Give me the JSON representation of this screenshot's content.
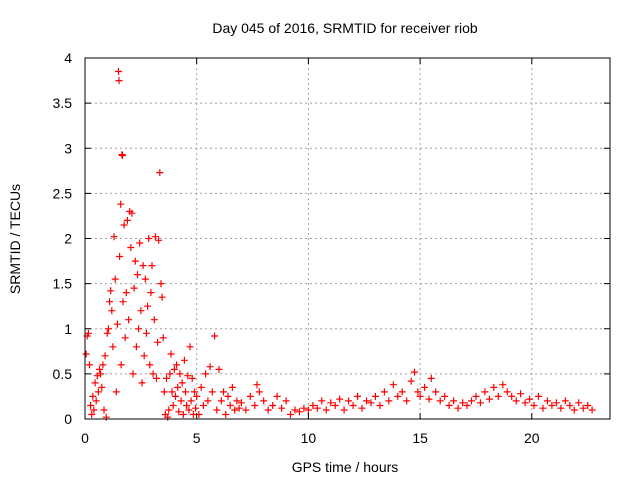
{
  "chart_data": {
    "type": "scatter",
    "title": "Day 045 of 2016, SRMTID for receiver riob",
    "xlabel": "GPS time / hours",
    "ylabel": "SRMTID / TECUs",
    "xlim": [
      0,
      23.5
    ],
    "ylim": [
      0,
      4
    ],
    "xticks": [
      0,
      5,
      10,
      15,
      20
    ],
    "yticks": [
      0,
      0.5,
      1,
      1.5,
      2,
      2.5,
      3,
      3.5,
      4
    ],
    "xtick_labels": [
      "0",
      "5",
      "10",
      "15",
      "20"
    ],
    "ytick_labels": [
      "0",
      "0.5",
      "1",
      "1.5",
      "2",
      "2.5",
      "3",
      "3.5",
      "4"
    ],
    "grid": true,
    "marker": "+",
    "color": "#ff0000",
    "series": [
      {
        "name": "SRMTID",
        "points": [
          [
            0.05,
            0.72
          ],
          [
            0.1,
            0.92
          ],
          [
            0.15,
            0.95
          ],
          [
            0.2,
            0.6
          ],
          [
            0.25,
            0.15
          ],
          [
            0.3,
            0.05
          ],
          [
            0.35,
            0.25
          ],
          [
            0.4,
            0.1
          ],
          [
            0.45,
            0.4
          ],
          [
            0.5,
            0.2
          ],
          [
            0.55,
            0.48
          ],
          [
            0.6,
            0.3
          ],
          [
            0.65,
            0.55
          ],
          [
            0.7,
            0.5
          ],
          [
            0.75,
            0.35
          ],
          [
            0.8,
            0.6
          ],
          [
            0.85,
            0.1
          ],
          [
            0.9,
            0.7
          ],
          [
            0.95,
            0.02
          ],
          [
            1.0,
            0.95
          ],
          [
            1.05,
            1.0
          ],
          [
            1.1,
            1.3
          ],
          [
            1.15,
            1.42
          ],
          [
            1.2,
            1.2
          ],
          [
            1.25,
            0.8
          ],
          [
            1.3,
            2.02
          ],
          [
            1.35,
            1.55
          ],
          [
            1.4,
            0.3
          ],
          [
            1.45,
            1.05
          ],
          [
            1.5,
            3.85
          ],
          [
            1.52,
            3.75
          ],
          [
            1.55,
            1.8
          ],
          [
            1.6,
            2.38
          ],
          [
            1.62,
            0.6
          ],
          [
            1.65,
            2.93
          ],
          [
            1.68,
            2.92
          ],
          [
            1.7,
            1.3
          ],
          [
            1.75,
            2.15
          ],
          [
            1.8,
            0.9
          ],
          [
            1.85,
            1.4
          ],
          [
            1.9,
            2.2
          ],
          [
            1.95,
            1.1
          ],
          [
            2.0,
            2.3
          ],
          [
            2.05,
            1.9
          ],
          [
            2.1,
            2.28
          ],
          [
            2.15,
            0.5
          ],
          [
            2.2,
            1.45
          ],
          [
            2.25,
            1.75
          ],
          [
            2.3,
            0.8
          ],
          [
            2.35,
            1.6
          ],
          [
            2.4,
            1.0
          ],
          [
            2.45,
            1.95
          ],
          [
            2.5,
            1.2
          ],
          [
            2.55,
            0.4
          ],
          [
            2.6,
            1.7
          ],
          [
            2.65,
            0.7
          ],
          [
            2.7,
            1.55
          ],
          [
            2.75,
            0.95
          ],
          [
            2.8,
            1.25
          ],
          [
            2.85,
            2.0
          ],
          [
            2.9,
            0.6
          ],
          [
            2.95,
            1.4
          ],
          [
            3.0,
            1.7
          ],
          [
            3.05,
            0.5
          ],
          [
            3.1,
            1.1
          ],
          [
            3.15,
            2.02
          ],
          [
            3.2,
            0.45
          ],
          [
            3.25,
            0.85
          ],
          [
            3.3,
            1.98
          ],
          [
            3.35,
            2.73
          ],
          [
            3.4,
            1.5
          ],
          [
            3.45,
            1.35
          ],
          [
            3.5,
            0.9
          ],
          [
            3.55,
            0.3
          ],
          [
            3.6,
            0.05
          ],
          [
            3.65,
            0.45
          ],
          [
            3.7,
            0.02
          ],
          [
            3.75,
            0.1
          ],
          [
            3.8,
            0.5
          ],
          [
            3.85,
            0.72
          ],
          [
            3.9,
            0.3
          ],
          [
            3.95,
            0.15
          ],
          [
            4.0,
            0.55
          ],
          [
            4.05,
            0.25
          ],
          [
            4.1,
            0.6
          ],
          [
            4.15,
            0.35
          ],
          [
            4.2,
            0.08
          ],
          [
            4.25,
            0.5
          ],
          [
            4.3,
            0.2
          ],
          [
            4.35,
            0.4
          ],
          [
            4.4,
            0.05
          ],
          [
            4.45,
            0.65
          ],
          [
            4.5,
            0.3
          ],
          [
            4.55,
            0.15
          ],
          [
            4.6,
            0.48
          ],
          [
            4.65,
            0.1
          ],
          [
            4.7,
            0.8
          ],
          [
            4.75,
            0.2
          ],
          [
            4.8,
            0.45
          ],
          [
            4.85,
            0.05
          ],
          [
            4.9,
            0.3
          ],
          [
            4.95,
            0.12
          ],
          [
            5.0,
            0.25
          ],
          [
            5.1,
            0.05
          ],
          [
            5.2,
            0.35
          ],
          [
            5.3,
            0.15
          ],
          [
            5.4,
            0.5
          ],
          [
            5.5,
            0.2
          ],
          [
            5.6,
            0.58
          ],
          [
            5.7,
            0.3
          ],
          [
            5.8,
            0.92
          ],
          [
            5.9,
            0.1
          ],
          [
            6.0,
            0.55
          ],
          [
            6.1,
            0.2
          ],
          [
            6.2,
            0.3
          ],
          [
            6.3,
            0.05
          ],
          [
            6.4,
            0.25
          ],
          [
            6.5,
            0.15
          ],
          [
            6.6,
            0.35
          ],
          [
            6.7,
            0.1
          ],
          [
            6.8,
            0.2
          ],
          [
            6.9,
            0.12
          ],
          [
            7.0,
            0.18
          ],
          [
            7.2,
            0.1
          ],
          [
            7.4,
            0.25
          ],
          [
            7.6,
            0.15
          ],
          [
            7.7,
            0.38
          ],
          [
            7.8,
            0.3
          ],
          [
            8.0,
            0.2
          ],
          [
            8.2,
            0.1
          ],
          [
            8.4,
            0.15
          ],
          [
            8.6,
            0.25
          ],
          [
            8.8,
            0.12
          ],
          [
            9.0,
            0.2
          ],
          [
            9.2,
            0.05
          ],
          [
            9.4,
            0.1
          ],
          [
            9.6,
            0.08
          ],
          [
            9.8,
            0.12
          ],
          [
            10.0,
            0.1
          ],
          [
            10.2,
            0.15
          ],
          [
            10.4,
            0.12
          ],
          [
            10.6,
            0.2
          ],
          [
            10.8,
            0.1
          ],
          [
            11.0,
            0.18
          ],
          [
            11.2,
            0.15
          ],
          [
            11.4,
            0.22
          ],
          [
            11.6,
            0.1
          ],
          [
            11.8,
            0.2
          ],
          [
            12.0,
            0.15
          ],
          [
            12.2,
            0.25
          ],
          [
            12.4,
            0.12
          ],
          [
            12.6,
            0.2
          ],
          [
            12.8,
            0.18
          ],
          [
            13.0,
            0.25
          ],
          [
            13.2,
            0.15
          ],
          [
            13.4,
            0.3
          ],
          [
            13.6,
            0.2
          ],
          [
            13.8,
            0.38
          ],
          [
            14.0,
            0.25
          ],
          [
            14.2,
            0.3
          ],
          [
            14.4,
            0.2
          ],
          [
            14.6,
            0.42
          ],
          [
            14.75,
            0.52
          ],
          [
            14.9,
            0.3
          ],
          [
            15.0,
            0.25
          ],
          [
            15.2,
            0.35
          ],
          [
            15.4,
            0.22
          ],
          [
            15.5,
            0.45
          ],
          [
            15.7,
            0.3
          ],
          [
            15.9,
            0.2
          ],
          [
            16.1,
            0.25
          ],
          [
            16.3,
            0.15
          ],
          [
            16.5,
            0.2
          ],
          [
            16.7,
            0.12
          ],
          [
            16.9,
            0.18
          ],
          [
            17.1,
            0.15
          ],
          [
            17.3,
            0.2
          ],
          [
            17.5,
            0.25
          ],
          [
            17.7,
            0.18
          ],
          [
            17.9,
            0.3
          ],
          [
            18.1,
            0.22
          ],
          [
            18.3,
            0.35
          ],
          [
            18.5,
            0.25
          ],
          [
            18.7,
            0.38
          ],
          [
            18.9,
            0.3
          ],
          [
            19.1,
            0.25
          ],
          [
            19.3,
            0.2
          ],
          [
            19.5,
            0.28
          ],
          [
            19.7,
            0.18
          ],
          [
            19.9,
            0.22
          ],
          [
            20.1,
            0.15
          ],
          [
            20.3,
            0.25
          ],
          [
            20.5,
            0.12
          ],
          [
            20.7,
            0.2
          ],
          [
            20.9,
            0.15
          ],
          [
            21.1,
            0.18
          ],
          [
            21.3,
            0.12
          ],
          [
            21.5,
            0.2
          ],
          [
            21.7,
            0.15
          ],
          [
            21.9,
            0.1
          ],
          [
            22.1,
            0.18
          ],
          [
            22.3,
            0.12
          ],
          [
            22.5,
            0.15
          ],
          [
            22.7,
            0.1
          ]
        ]
      }
    ]
  }
}
